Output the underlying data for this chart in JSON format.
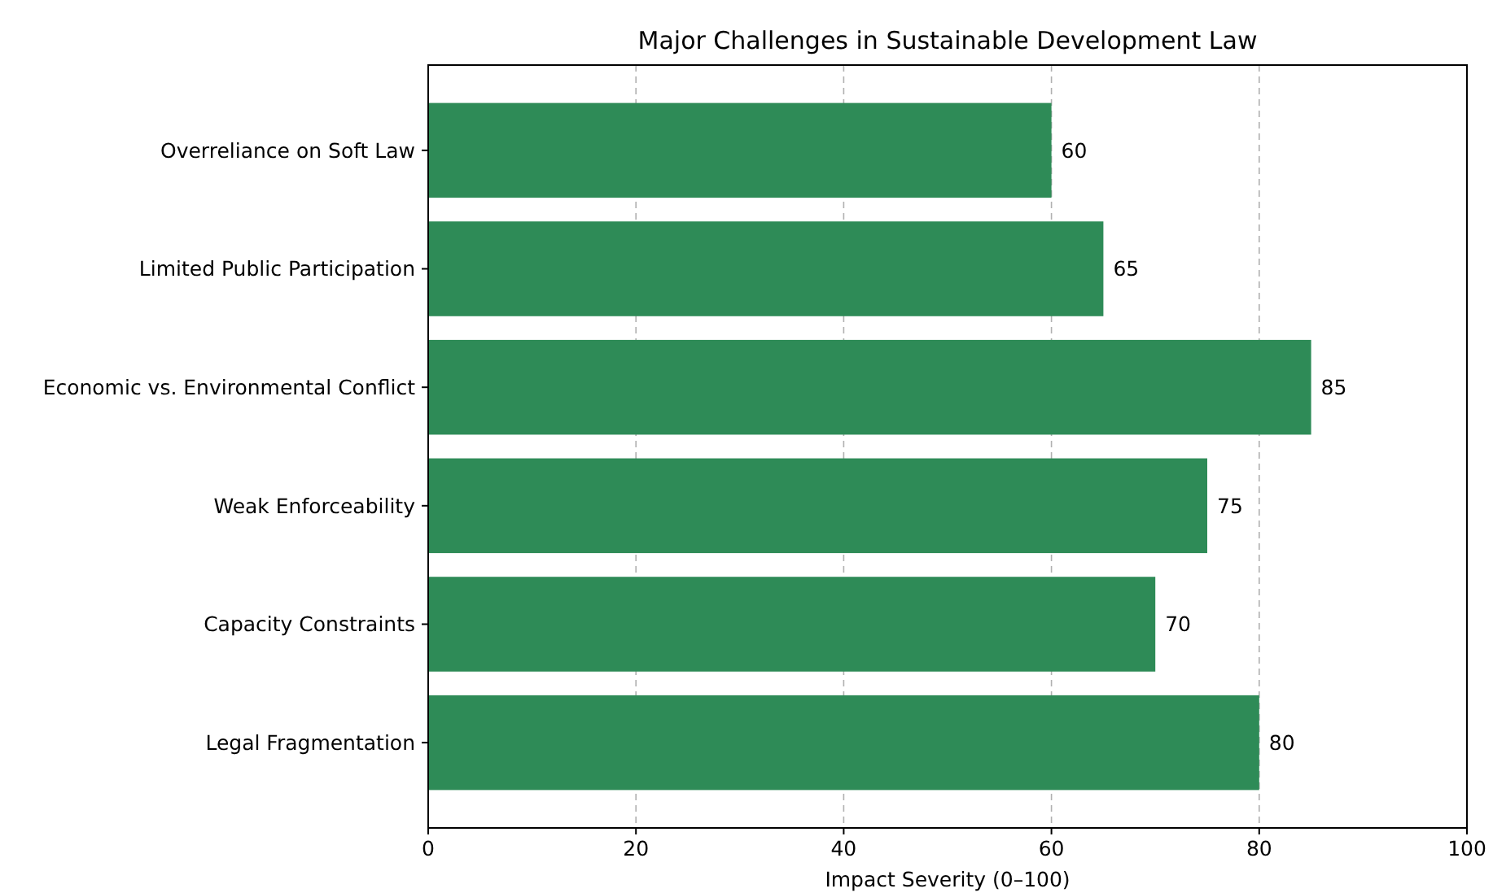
{
  "chart_data": {
    "type": "bar",
    "orientation": "horizontal",
    "title": "Major Challenges in Sustainable Development Law",
    "xlabel": "Impact Severity (0–100)",
    "categories": [
      "Overreliance on Soft Law",
      "Limited Public Participation",
      "Economic vs. Environmental Conflict",
      "Weak Enforceability",
      "Capacity Constraints",
      "Legal Fragmentation"
    ],
    "values": [
      60,
      65,
      85,
      75,
      70,
      80
    ],
    "color": "#2e8b57",
    "xlim": [
      0,
      100
    ],
    "xticks": [
      0,
      20,
      40,
      60,
      80,
      100
    ],
    "grid": "x",
    "data_labels": true
  }
}
